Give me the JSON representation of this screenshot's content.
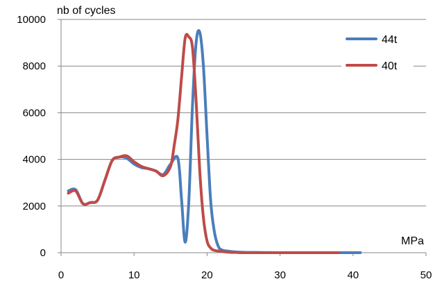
{
  "chart_data": {
    "type": "line",
    "title": "",
    "xlabel": "MPa",
    "ylabel": "nb of cycles",
    "xlim": [
      0,
      50
    ],
    "ylim": [
      0,
      10000
    ],
    "xticks": [
      0,
      10,
      20,
      30,
      40,
      50
    ],
    "yticks": [
      0,
      2000,
      4000,
      6000,
      8000,
      10000
    ],
    "grid": "horizontal",
    "legend_position": "top-right",
    "series": [
      {
        "name": "44t",
        "color": "#4a7ebb",
        "x": [
          1,
          2,
          3,
          4,
          5,
          6,
          7,
          8,
          9,
          10,
          11,
          12,
          13,
          14,
          15,
          16,
          16.5,
          17,
          17.5,
          18,
          18.5,
          19,
          19.5,
          20,
          20.5,
          21,
          21.5,
          22,
          23,
          24,
          25,
          26,
          28,
          30,
          35,
          41
        ],
        "y": [
          2650,
          2700,
          2100,
          2150,
          2250,
          3100,
          3950,
          4100,
          4050,
          3800,
          3650,
          3600,
          3500,
          3350,
          3800,
          4050,
          2300,
          450,
          2200,
          6300,
          9000,
          9450,
          8000,
          5000,
          2200,
          900,
          300,
          120,
          60,
          30,
          15,
          10,
          5,
          0,
          0,
          0
        ]
      },
      {
        "name": "40t",
        "color": "#be4b48",
        "x": [
          1,
          2,
          3,
          4,
          5,
          6,
          7,
          8,
          9,
          10,
          11,
          12,
          13,
          14,
          15,
          15.5,
          16,
          16.5,
          17,
          17.5,
          18,
          18.5,
          19,
          19.5,
          20,
          20.5,
          21,
          22,
          23,
          24,
          25,
          30,
          38
        ],
        "y": [
          2550,
          2650,
          2100,
          2150,
          2250,
          3100,
          3950,
          4100,
          4150,
          3900,
          3700,
          3600,
          3500,
          3300,
          3700,
          4600,
          5700,
          7500,
          9200,
          9250,
          8800,
          6500,
          3500,
          1500,
          500,
          200,
          100,
          50,
          20,
          10,
          0,
          0,
          0
        ]
      }
    ]
  }
}
